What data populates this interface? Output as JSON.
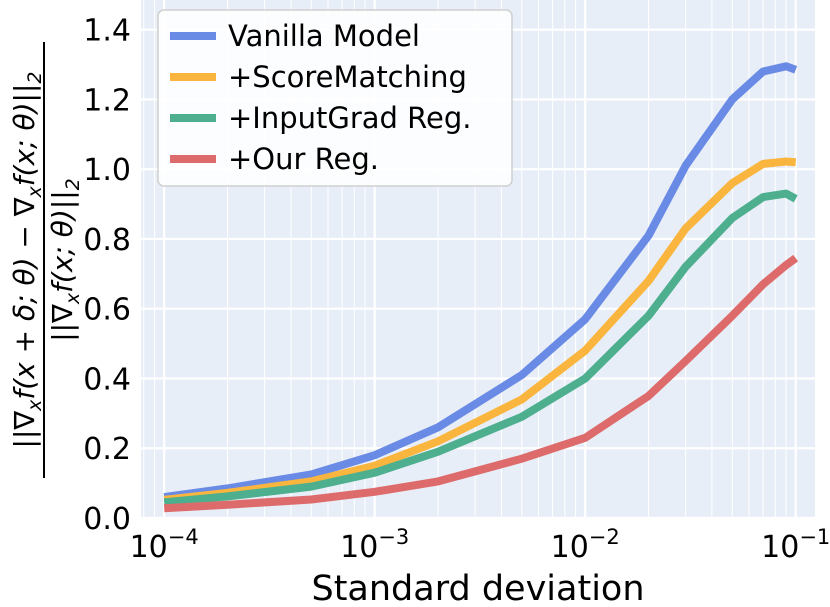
{
  "chart_data": {
    "type": "line",
    "xscale": "log",
    "xlim": [
      7.76e-05,
      0.1235
    ],
    "ylim": [
      0,
      1.485
    ],
    "grid": true,
    "grid_minor": true,
    "legend_position": "top-left",
    "background_color": "#e8eef8",
    "xlabel": "Standard deviation",
    "ylabel_display": "||∇ₓf(x+δ;θ) − ∇ₓf(x;θ)||₂ / ||∇ₓf(x;θ)||₂",
    "ylabel": {
      "numerator": [
        "||∇",
        "x",
        "f(x + δ; θ) − ∇",
        "x",
        "f(x; θ)||",
        "2"
      ],
      "denominator": [
        "||∇",
        "x",
        "f(x; θ)||",
        "2"
      ]
    },
    "x_ticks": [
      {
        "value": 0.0001,
        "base": "10",
        "exp": "−4"
      },
      {
        "value": 0.001,
        "base": "10",
        "exp": "−3"
      },
      {
        "value": 0.01,
        "base": "10",
        "exp": "−2"
      },
      {
        "value": 0.1,
        "base": "10",
        "exp": "−1"
      }
    ],
    "y_ticks": [
      {
        "value": 0.0,
        "label": "0.0"
      },
      {
        "value": 0.2,
        "label": "0.2"
      },
      {
        "value": 0.4,
        "label": "0.4"
      },
      {
        "value": 0.6,
        "label": "0.6"
      },
      {
        "value": 0.8,
        "label": "0.8"
      },
      {
        "value": 1.0,
        "label": "1.0"
      },
      {
        "value": 1.2,
        "label": "1.2"
      },
      {
        "value": 1.4,
        "label": "1.4"
      }
    ],
    "x": [
      0.0001,
      0.0002,
      0.0005,
      0.001,
      0.002,
      0.005,
      0.01,
      0.02,
      0.03,
      0.05,
      0.07,
      0.09,
      0.1
    ],
    "series": [
      {
        "name": "Vanilla Model",
        "color": "#6a8be5",
        "values": [
          0.06,
          0.085,
          0.125,
          0.18,
          0.26,
          0.41,
          0.57,
          0.81,
          1.01,
          1.2,
          1.28,
          1.295,
          1.285
        ]
      },
      {
        "name": "+ScoreMatching",
        "color": "#f9b53e",
        "values": [
          0.052,
          0.072,
          0.105,
          0.15,
          0.22,
          0.34,
          0.48,
          0.68,
          0.83,
          0.96,
          1.015,
          1.022,
          1.02
        ]
      },
      {
        "name": "+InputGrad Reg.",
        "color": "#4daf8e",
        "values": [
          0.045,
          0.062,
          0.09,
          0.13,
          0.19,
          0.29,
          0.4,
          0.58,
          0.72,
          0.86,
          0.92,
          0.93,
          0.915
        ]
      },
      {
        "name": "+Our Reg.",
        "color": "#de6b6b",
        "values": [
          0.028,
          0.038,
          0.053,
          0.075,
          0.105,
          0.17,
          0.23,
          0.35,
          0.45,
          0.58,
          0.67,
          0.725,
          0.745
        ]
      }
    ]
  }
}
